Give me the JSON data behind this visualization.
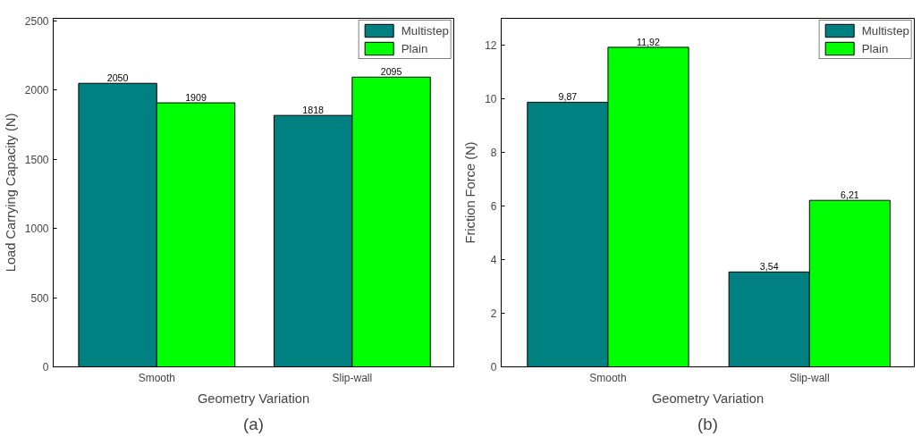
{
  "chart_data": [
    {
      "type": "bar",
      "categories": [
        "Smooth",
        "Slip-wall"
      ],
      "xlabel": "Geometry Variation",
      "ylabel": "Load Carrying Capacity (N)",
      "ylim": [
        0,
        2520
      ],
      "yticks": [
        0,
        500,
        1000,
        1500,
        2000,
        2500
      ],
      "series": [
        {
          "name": "Multistep",
          "color": "#008080",
          "values": [
            2050,
            1818
          ]
        },
        {
          "name": "Plain",
          "color": "#00ff00",
          "values": [
            1909,
            2095
          ]
        }
      ],
      "data_labels": true,
      "legend": "top right",
      "grid": false,
      "annotations": [
        "(a)"
      ]
    },
    {
      "type": "bar",
      "categories": [
        "Smooth",
        "Slip-wall"
      ],
      "xlabel": "Geometry Variation",
      "ylabel": "Friction Force (N)",
      "ylim": [
        0,
        13
      ],
      "yticks": [
        0,
        2,
        4,
        6,
        8,
        10,
        12
      ],
      "series": [
        {
          "name": "Multistep",
          "color": "#008080",
          "values": [
            9.87,
            3.54
          ],
          "value_labels": [
            "9,87",
            "3,54"
          ]
        },
        {
          "name": "Plain",
          "color": "#00ff00",
          "values": [
            11.92,
            6.21
          ],
          "value_labels": [
            "11,92",
            "6,21"
          ]
        }
      ],
      "legend": "top right",
      "grid": false,
      "annotations": [
        "(b)"
      ]
    }
  ]
}
